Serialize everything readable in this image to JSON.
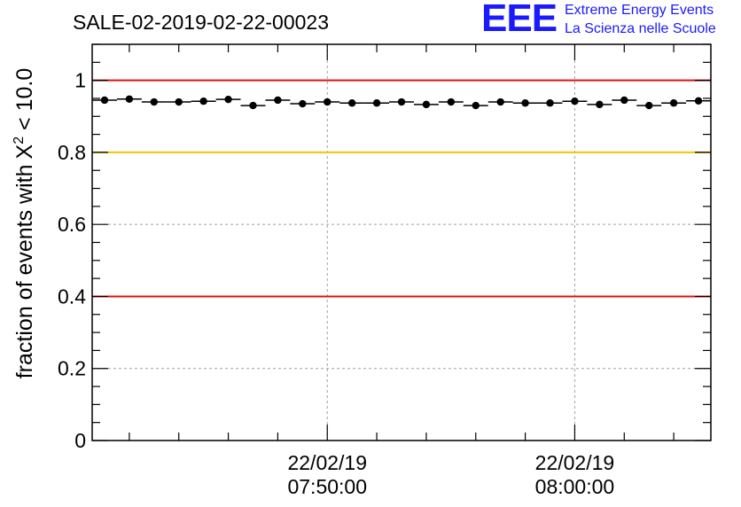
{
  "title": "SALE-02-2019-02-22-00023",
  "logo": {
    "mark": "EEE",
    "line1": "Extreme Energy Events",
    "line2": "La Scienza nelle Scuole",
    "color": "#1a1aff"
  },
  "chart_data": {
    "type": "scatter",
    "ylabel": "fraction of events with",
    "ylabel_chi": "X",
    "ylabel_sup": "2",
    "ylabel_tail": " < 10.0",
    "ylim": [
      0,
      1.1
    ],
    "y_ticks": [
      0,
      0.2,
      0.4,
      0.6,
      0.8,
      1
    ],
    "y_tick_labels": [
      "0",
      "0.2",
      "0.4",
      "0.6",
      "0.8",
      "1"
    ],
    "x_ticks": [
      {
        "line1": "22/02/19",
        "line2": "07:50:00",
        "minutes": 10
      },
      {
        "line1": "22/02/19",
        "line2": "08:00:00",
        "minutes": 20
      }
    ],
    "x_range_minutes": [
      0.5,
      25.5
    ],
    "grid": true,
    "reference_lines": [
      {
        "y": 1.0,
        "color": "#e01010"
      },
      {
        "y": 0.8,
        "color": "#f5c400"
      },
      {
        "y": 0.4,
        "color": "#e01010"
      }
    ],
    "series": [
      {
        "x": [
          1,
          2,
          3,
          4,
          5,
          6,
          7,
          8,
          9,
          10,
          11,
          12,
          13,
          14,
          15,
          16,
          17,
          18,
          19,
          20,
          21,
          22,
          23,
          24,
          25
        ],
        "values": [
          0.945,
          0.948,
          0.94,
          0.94,
          0.942,
          0.947,
          0.93,
          0.945,
          0.935,
          0.94,
          0.937,
          0.937,
          0.94,
          0.933,
          0.94,
          0.93,
          0.94,
          0.937,
          0.937,
          0.942,
          0.933,
          0.945,
          0.93,
          0.937,
          0.943
        ],
        "color": "#000000"
      }
    ]
  }
}
